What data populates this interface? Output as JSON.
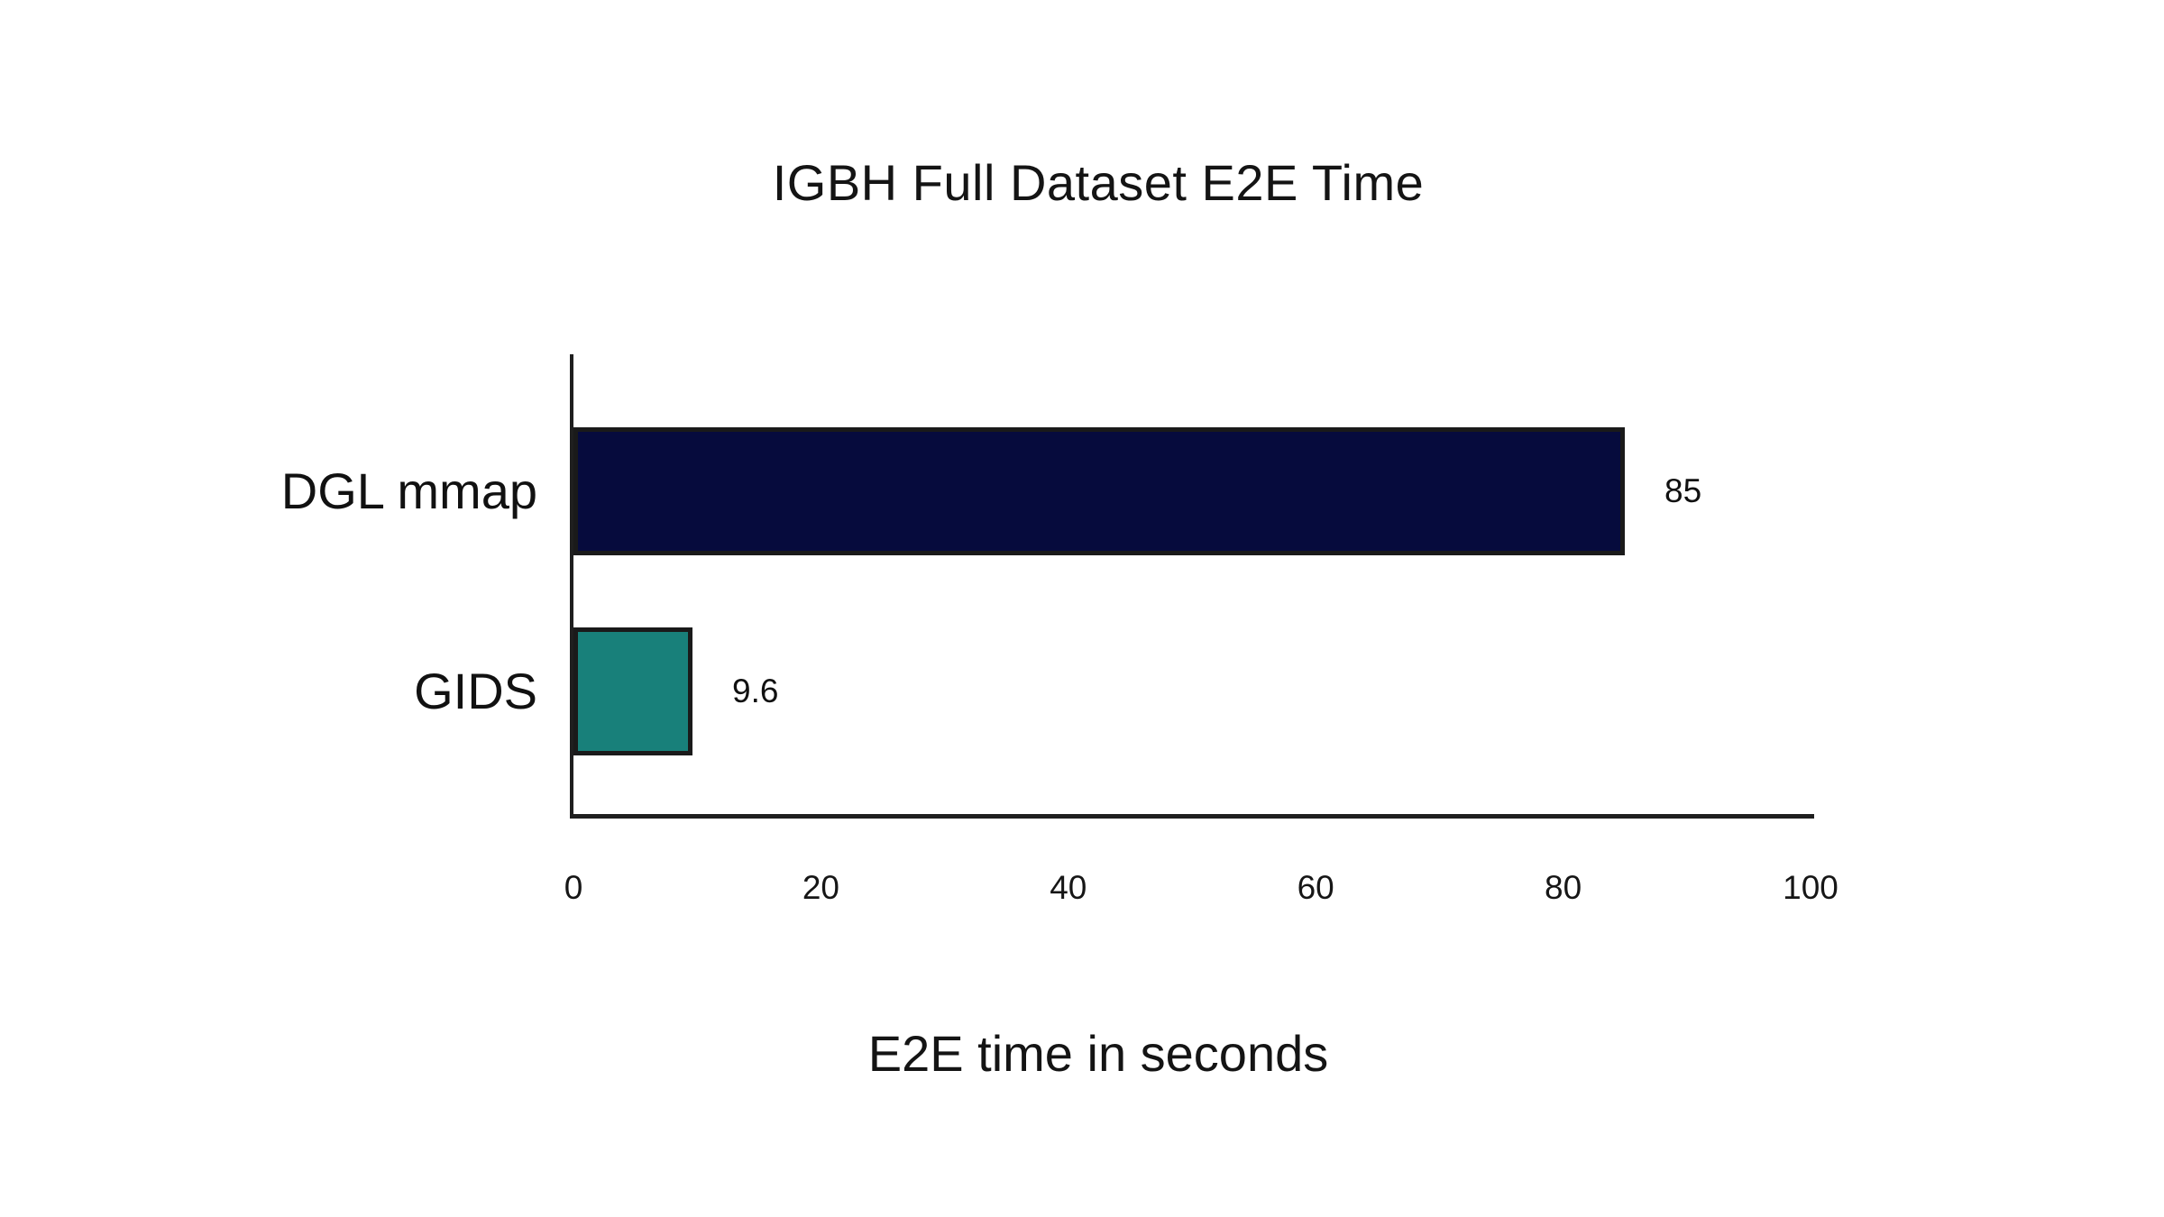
{
  "chart_data": {
    "type": "bar",
    "orientation": "horizontal",
    "title": "IGBH Full Dataset E2E Time",
    "xlabel": "E2E time in seconds",
    "ylabel": "",
    "categories": [
      "DGL mmap",
      "GIDS"
    ],
    "values": [
      85,
      9.6
    ],
    "value_labels": [
      "85",
      "9.6"
    ],
    "bar_colors": [
      "#060b3d",
      "#18807a"
    ],
    "bar_border_color": "#1a1a1a",
    "xlim": [
      0,
      100
    ],
    "x_ticks": [
      "0",
      "20",
      "40",
      "60",
      "80",
      "100"
    ],
    "grid": false,
    "legend": false,
    "background_color": "#ffffff",
    "axis_color": "#1f1f1f",
    "text_color": "#141414"
  }
}
